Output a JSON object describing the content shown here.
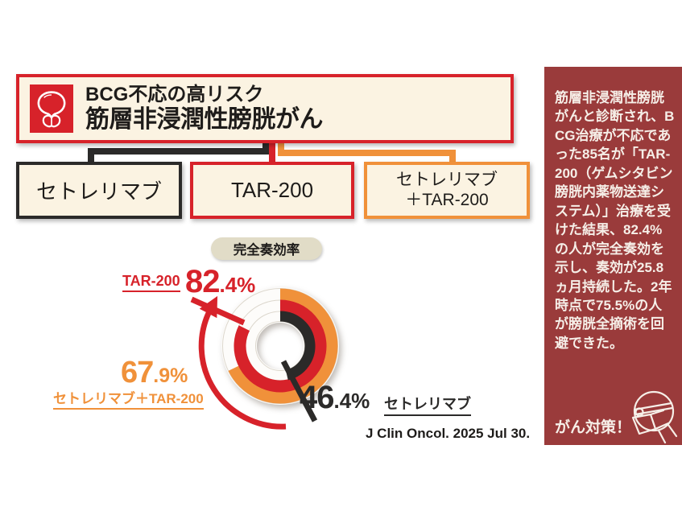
{
  "header": {
    "line1": "BCG不応の高リスク",
    "line2": "筋層非浸潤性膀胱がん",
    "icon": "bladder-icon"
  },
  "treatments": [
    {
      "label": "セトレリマブ",
      "border_color": "#2B2A29"
    },
    {
      "label": "TAR-200",
      "border_color": "#D7222A"
    },
    {
      "line1": "セトレリマブ",
      "line2": "＋TAR-200",
      "border_color": "#F0913A"
    }
  ],
  "chart_data": {
    "type": "donut",
    "title": "完全奏効率",
    "unit": "%",
    "rings": [
      {
        "name": "セトレリマブ＋TAR-200",
        "value": 67.9,
        "color": "#F0913A",
        "position": "outer"
      },
      {
        "name": "TAR-200",
        "value": 82.4,
        "color": "#D7222A",
        "position": "middle"
      },
      {
        "name": "セトレリマブ",
        "value": 46.4,
        "color": "#2B2A29",
        "position": "inner"
      }
    ],
    "start_angle_deg": 0,
    "direction": "clockwise",
    "annotation_arrow": "from 46.4% end curving up to 82.4% label",
    "source": "J Clin Oncol. 2025 Jul 30."
  },
  "sidebar": {
    "background": "#9A3B3B",
    "body": "筋層非浸潤性膀胱がんと診断され、BCG治療が不応であった85名が「TAR-200（ゲムシタビン 膀胱内薬物送達システム）」治療を受けた結果、82.4%の人が完全奏効を示し、奏効が25.8ヵ月持続した。2年時点で75.5%の人が膀胱全摘術を回避できた。",
    "footer": "がん対策！",
    "icon": "doctor-mask-icon"
  },
  "colors": {
    "accent_red": "#D7222A",
    "accent_orange": "#F0913A",
    "accent_black": "#2B2A29",
    "box_cream": "#FBF3E2",
    "pill_beige": "#E1DCC7",
    "sidebar_red": "#9A3B3B"
  }
}
